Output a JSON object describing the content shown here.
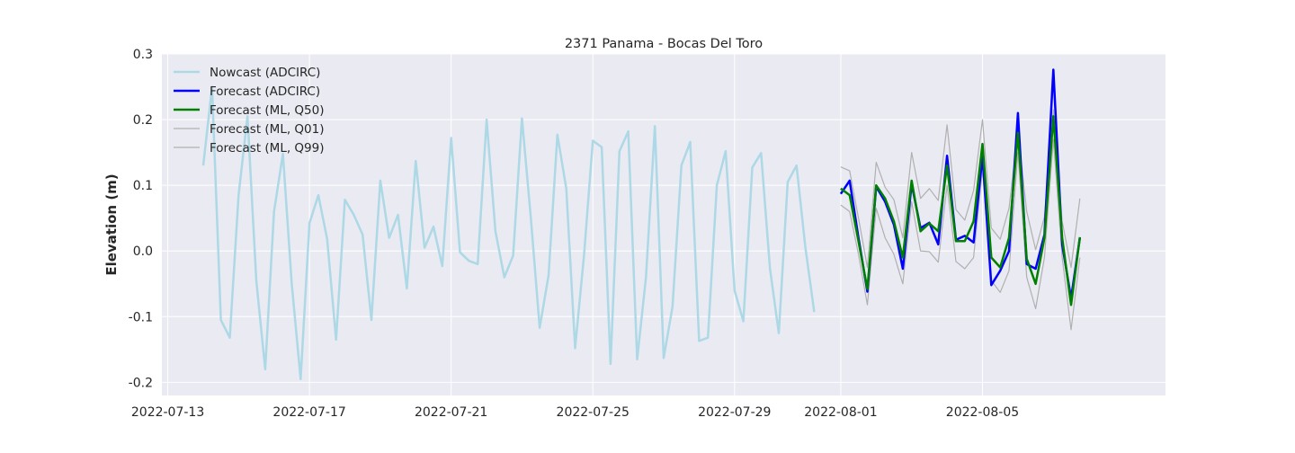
{
  "chart_data": {
    "type": "line",
    "title": "2371 Panama - Bocas Del Toro",
    "xlabel": "",
    "ylabel": "Elevation (m)",
    "xlim": [
      "2022-07-12T20:00",
      "2022-08-10T04:00"
    ],
    "ylim": [
      -0.22,
      0.3
    ],
    "y_ticks": [
      -0.2,
      -0.1,
      0.0,
      0.1,
      0.2,
      0.3
    ],
    "x_ticks": [
      "2022-07-13",
      "2022-07-17",
      "2022-07-21",
      "2022-07-25",
      "2022-07-29",
      "2022-08-01",
      "2022-08-05"
    ],
    "grid": true,
    "legend_position": "top-left",
    "colors": {
      "background": "#eaeaf2",
      "grid": "#ffffff",
      "nowcast": "#add8e6",
      "forecast_adcirc": "#0000ff",
      "forecast_ml_q50": "#008000",
      "forecast_ml_q01": "#b0b0b0",
      "forecast_ml_q99": "#b0b0b0"
    },
    "series": [
      {
        "name": "Nowcast (ADCIRC)",
        "key": "nowcast",
        "x": [
          "2022-07-14T00:00",
          "2022-07-14T06:00",
          "2022-07-14T12:00",
          "2022-07-14T18:00",
          "2022-07-15T00:00",
          "2022-07-15T06:00",
          "2022-07-15T12:00",
          "2022-07-15T18:00",
          "2022-07-16T00:00",
          "2022-07-16T06:00",
          "2022-07-16T12:00",
          "2022-07-16T18:00",
          "2022-07-17T00:00",
          "2022-07-17T06:00",
          "2022-07-17T12:00",
          "2022-07-17T18:00",
          "2022-07-18T00:00",
          "2022-07-18T06:00",
          "2022-07-18T12:00",
          "2022-07-18T18:00",
          "2022-07-19T00:00",
          "2022-07-19T06:00",
          "2022-07-19T12:00",
          "2022-07-19T18:00",
          "2022-07-20T00:00",
          "2022-07-20T06:00",
          "2022-07-20T12:00",
          "2022-07-20T18:00",
          "2022-07-21T00:00",
          "2022-07-21T06:00",
          "2022-07-21T12:00",
          "2022-07-21T18:00",
          "2022-07-22T00:00",
          "2022-07-22T06:00",
          "2022-07-22T12:00",
          "2022-07-22T18:00",
          "2022-07-23T00:00",
          "2022-07-23T06:00",
          "2022-07-23T12:00",
          "2022-07-23T18:00",
          "2022-07-24T00:00",
          "2022-07-24T06:00",
          "2022-07-24T12:00",
          "2022-07-24T18:00",
          "2022-07-25T00:00",
          "2022-07-25T06:00",
          "2022-07-25T12:00",
          "2022-07-25T18:00",
          "2022-07-26T00:00",
          "2022-07-26T06:00",
          "2022-07-26T12:00",
          "2022-07-26T18:00",
          "2022-07-27T00:00",
          "2022-07-27T06:00",
          "2022-07-27T12:00",
          "2022-07-27T18:00",
          "2022-07-28T00:00",
          "2022-07-28T06:00",
          "2022-07-28T12:00",
          "2022-07-28T18:00",
          "2022-07-29T00:00",
          "2022-07-29T06:00",
          "2022-07-29T12:00",
          "2022-07-29T18:00",
          "2022-07-30T00:00",
          "2022-07-30T06:00",
          "2022-07-30T12:00",
          "2022-07-30T18:00",
          "2022-07-31T00:00",
          "2022-07-31T06:00",
          "2022-07-31T12:00",
          "2022-07-31T18:00"
        ],
        "values": [
          0.13,
          0.25,
          -0.105,
          -0.132,
          0.085,
          0.205,
          -0.045,
          -0.18,
          0.06,
          0.148,
          -0.05,
          -0.195,
          0.042,
          0.085,
          0.018,
          -0.135,
          0.078,
          0.055,
          0.025,
          -0.105,
          0.107,
          0.02,
          0.055,
          -0.057,
          0.137,
          0.005,
          0.037,
          -0.023,
          0.172,
          -0.002,
          -0.015,
          -0.02,
          0.2,
          0.03,
          -0.04,
          -0.007,
          0.202,
          0.05,
          -0.117,
          -0.037,
          0.177,
          0.095,
          -0.148,
          -0.007,
          0.168,
          0.158,
          -0.172,
          0.152,
          0.182,
          -0.165,
          -0.04,
          0.19,
          -0.163,
          -0.085,
          0.13,
          0.166,
          -0.137,
          -0.132,
          0.1,
          0.152,
          -0.06,
          -0.107,
          0.127,
          0.149,
          -0.027,
          -0.125,
          0.105,
          0.13,
          0.005,
          -0.093,
          null,
          null
        ]
      },
      {
        "name": "Forecast (ADCIRC)",
        "key": "forecast_adcirc",
        "x": [
          "2022-08-01T00:00",
          "2022-08-01T06:00",
          "2022-08-01T12:00",
          "2022-08-01T18:00",
          "2022-08-02T00:00",
          "2022-08-02T06:00",
          "2022-08-02T12:00",
          "2022-08-02T18:00",
          "2022-08-03T00:00",
          "2022-08-03T06:00",
          "2022-08-03T12:00",
          "2022-08-03T18:00",
          "2022-08-04T00:00",
          "2022-08-04T06:00",
          "2022-08-04T12:00",
          "2022-08-04T18:00",
          "2022-08-05T00:00",
          "2022-08-05T06:00",
          "2022-08-05T12:00",
          "2022-08-05T18:00",
          "2022-08-06T00:00",
          "2022-08-06T06:00",
          "2022-08-06T12:00",
          "2022-08-06T18:00",
          "2022-08-07T00:00",
          "2022-08-07T06:00",
          "2022-08-07T12:00",
          "2022-08-07T18:00"
        ],
        "values": [
          0.087,
          0.107,
          0.02,
          -0.062,
          0.098,
          0.075,
          0.04,
          -0.027,
          0.102,
          0.035,
          0.043,
          0.01,
          0.145,
          0.017,
          0.023,
          0.013,
          0.145,
          -0.052,
          -0.03,
          0.0,
          0.21,
          -0.02,
          -0.027,
          0.025,
          0.276,
          0.01,
          -0.072,
          0.02
        ]
      },
      {
        "name": "Forecast (ML, Q50)",
        "key": "forecast_ml_q50",
        "x": [
          "2022-08-01T00:00",
          "2022-08-01T06:00",
          "2022-08-01T12:00",
          "2022-08-01T18:00",
          "2022-08-02T00:00",
          "2022-08-02T06:00",
          "2022-08-02T12:00",
          "2022-08-02T18:00",
          "2022-08-03T00:00",
          "2022-08-03T06:00",
          "2022-08-03T12:00",
          "2022-08-03T18:00",
          "2022-08-04T00:00",
          "2022-08-04T06:00",
          "2022-08-04T12:00",
          "2022-08-04T18:00",
          "2022-08-05T00:00",
          "2022-08-05T06:00",
          "2022-08-05T12:00",
          "2022-08-05T18:00",
          "2022-08-06T00:00",
          "2022-08-06T06:00",
          "2022-08-06T12:00",
          "2022-08-06T18:00",
          "2022-08-07T00:00",
          "2022-08-07T06:00",
          "2022-08-07T12:00",
          "2022-08-07T18:00"
        ],
        "values": [
          0.095,
          0.085,
          0.015,
          -0.058,
          0.1,
          0.08,
          0.045,
          -0.01,
          0.107,
          0.03,
          0.042,
          0.03,
          0.13,
          0.015,
          0.015,
          0.045,
          0.163,
          -0.01,
          -0.025,
          0.02,
          0.18,
          -0.012,
          -0.05,
          0.02,
          0.205,
          0.02,
          -0.082,
          0.021
        ]
      },
      {
        "name": "Forecast (ML, Q01)",
        "key": "forecast_ml_q01",
        "x": [
          "2022-08-01T00:00",
          "2022-08-01T06:00",
          "2022-08-01T12:00",
          "2022-08-01T18:00",
          "2022-08-02T00:00",
          "2022-08-02T06:00",
          "2022-08-02T12:00",
          "2022-08-02T18:00",
          "2022-08-03T00:00",
          "2022-08-03T06:00",
          "2022-08-03T12:00",
          "2022-08-03T18:00",
          "2022-08-04T00:00",
          "2022-08-04T06:00",
          "2022-08-04T12:00",
          "2022-08-04T18:00",
          "2022-08-05T00:00",
          "2022-08-05T06:00",
          "2022-08-05T12:00",
          "2022-08-05T18:00",
          "2022-08-06T00:00",
          "2022-08-06T06:00",
          "2022-08-06T12:00",
          "2022-08-06T18:00",
          "2022-08-07T00:00",
          "2022-08-07T06:00",
          "2022-08-07T12:00",
          "2022-08-07T18:00"
        ],
        "values": [
          0.07,
          0.06,
          -0.005,
          -0.082,
          0.065,
          0.02,
          -0.005,
          -0.05,
          0.075,
          0.0,
          -0.001,
          -0.017,
          0.1,
          -0.016,
          -0.027,
          -0.01,
          0.125,
          -0.045,
          -0.063,
          -0.03,
          0.15,
          -0.04,
          -0.088,
          -0.01,
          0.17,
          -0.01,
          -0.12,
          -0.01
        ]
      },
      {
        "name": "Forecast (ML, Q99)",
        "key": "forecast_ml_q99",
        "x": [
          "2022-08-01T00:00",
          "2022-08-01T06:00",
          "2022-08-01T12:00",
          "2022-08-01T18:00",
          "2022-08-02T00:00",
          "2022-08-02T06:00",
          "2022-08-02T12:00",
          "2022-08-02T18:00",
          "2022-08-03T00:00",
          "2022-08-03T06:00",
          "2022-08-03T12:00",
          "2022-08-03T18:00",
          "2022-08-04T00:00",
          "2022-08-04T06:00",
          "2022-08-04T12:00",
          "2022-08-04T18:00",
          "2022-08-05T00:00",
          "2022-08-05T06:00",
          "2022-08-05T12:00",
          "2022-08-05T18:00",
          "2022-08-06T00:00",
          "2022-08-06T06:00",
          "2022-08-06T12:00",
          "2022-08-06T18:00",
          "2022-08-07T00:00",
          "2022-08-07T06:00",
          "2022-08-07T12:00",
          "2022-08-07T18:00"
        ],
        "values": [
          0.128,
          0.122,
          0.05,
          -0.025,
          0.135,
          0.097,
          0.078,
          0.02,
          0.15,
          0.08,
          0.095,
          0.077,
          0.192,
          0.063,
          0.047,
          0.092,
          0.2,
          0.035,
          0.018,
          0.065,
          0.182,
          0.06,
          0.002,
          0.052,
          0.215,
          0.045,
          -0.025,
          0.08
        ]
      }
    ]
  }
}
